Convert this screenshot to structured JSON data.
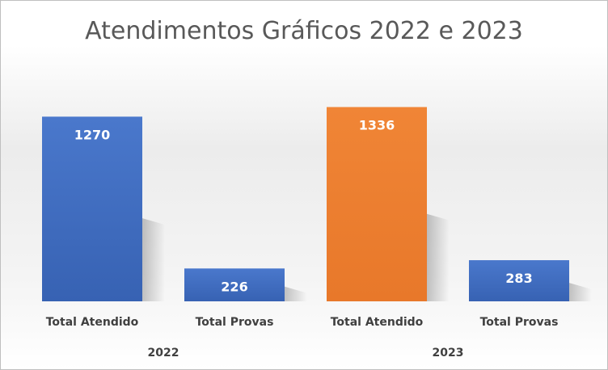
{
  "chart_data": {
    "type": "bar",
    "title": "Atendimentos Gráficos 2022 e 2023",
    "groups": [
      {
        "label": "2022",
        "bars": [
          {
            "category": "Total Atendido",
            "value": 1270,
            "color": "#4472c4"
          },
          {
            "category": "Total Provas",
            "value": 226,
            "color": "#4472c4"
          }
        ]
      },
      {
        "label": "2023",
        "bars": [
          {
            "category": "Total Atendido",
            "value": 1336,
            "color": "#ed7d31"
          },
          {
            "category": "Total Provas",
            "value": 283,
            "color": "#4472c4"
          }
        ]
      }
    ],
    "ylim": [
      0,
      1400
    ],
    "grid": false,
    "legend": "none"
  }
}
